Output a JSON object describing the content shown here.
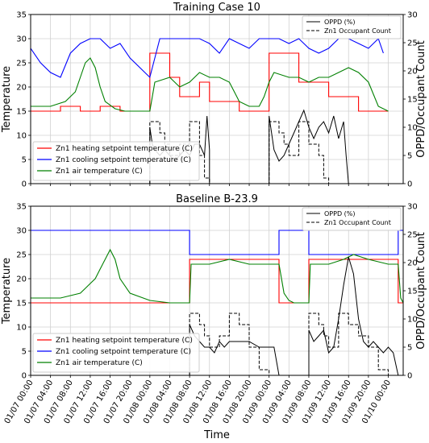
{
  "chart_data": [
    {
      "type": "line",
      "title": "Training Case 10",
      "ylabel": "Temperature",
      "y2label": "OPPD/Occupant Count",
      "ylim": [
        0,
        35
      ],
      "y2lim": [
        0,
        30
      ],
      "yticks": [
        "0",
        "5",
        "10",
        "15",
        "20",
        "25",
        "30",
        "35"
      ],
      "y2ticks": [
        "0",
        "5",
        "10",
        "15",
        "20",
        "25",
        "30"
      ],
      "grid": true,
      "legend_left": [
        "Zn1 heating setpoint temperature (C)",
        "Zn1 cooling setpoint temperature (C)",
        "Zn1 air temperature (C)"
      ],
      "legend_right": [
        "OPPD (%)",
        "Zn1 Occupant Count"
      ],
      "series": [
        {
          "name": "Zn1 heating setpoint temperature (C)",
          "color": "#ff0000",
          "x": [
            0,
            6,
            6,
            10,
            10,
            14,
            14,
            18,
            18,
            24,
            24,
            28,
            28,
            30,
            30,
            34,
            34,
            36,
            36,
            42,
            42,
            48,
            48,
            54,
            54,
            60,
            60,
            66,
            66,
            72
          ],
          "y": [
            15,
            15,
            16,
            16,
            15,
            15,
            16,
            16,
            15,
            15,
            27,
            27,
            22,
            22,
            18,
            18,
            21,
            21,
            17,
            17,
            15,
            15,
            27,
            27,
            21,
            21,
            18,
            18,
            15,
            15
          ]
        },
        {
          "name": "Zn1 cooling setpoint temperature (C)",
          "color": "#0000ff",
          "x": [
            0,
            2,
            4,
            6,
            8,
            10,
            12,
            14,
            16,
            18,
            20,
            22,
            24,
            26,
            28,
            30,
            32,
            34,
            36,
            38,
            40,
            42,
            44,
            46,
            48,
            50,
            52,
            54,
            56,
            58,
            60,
            62,
            64,
            66,
            68,
            70,
            71
          ],
          "y": [
            28,
            25,
            23,
            22,
            27,
            29,
            30,
            30,
            28,
            29,
            26,
            24,
            22,
            30,
            30,
            30,
            30,
            30,
            29,
            27,
            30,
            29,
            28,
            30,
            30,
            30,
            29,
            30,
            28,
            27,
            28,
            30,
            30,
            29,
            28,
            30,
            27
          ]
        },
        {
          "name": "Zn1 air temperature (C)",
          "color": "#008000",
          "x": [
            0,
            4,
            7,
            9,
            10,
            11,
            12,
            13,
            14,
            15,
            17,
            19,
            21,
            24,
            25,
            28,
            30,
            32,
            34,
            36,
            38,
            40,
            41,
            42,
            44,
            46,
            47,
            48,
            49,
            52,
            54,
            56,
            58,
            60,
            62,
            64,
            66,
            68,
            70,
            72
          ],
          "y": [
            16,
            16,
            17,
            19,
            22,
            25,
            26,
            24,
            20,
            17,
            15.5,
            15,
            15,
            15,
            21,
            22,
            20,
            21,
            23,
            22,
            22,
            21,
            19,
            17,
            16,
            16,
            18,
            21,
            23,
            22,
            22,
            21,
            22,
            22,
            23,
            24,
            23,
            21,
            16,
            15
          ]
        }
      ],
      "series_right": [
        {
          "name": "OPPD (%)",
          "color": "#000000",
          "x": [
            24,
            24,
            24.5,
            25,
            26,
            27,
            28,
            29,
            30,
            31,
            32,
            33,
            34,
            35,
            35.5,
            36,
            36,
            48,
            48,
            49,
            50,
            51,
            52,
            53,
            54,
            55,
            56,
            57,
            58,
            59,
            60,
            61,
            62,
            63,
            63.5,
            64
          ],
          "y": [
            0,
            10,
            7,
            6,
            5,
            6,
            5,
            4,
            5,
            6,
            5,
            7,
            7,
            5,
            12,
            6,
            0,
            0,
            12,
            6,
            4,
            5,
            7,
            9,
            11,
            13,
            10,
            8,
            10,
            11,
            9,
            12,
            8,
            11,
            5,
            0
          ]
        },
        {
          "name": "Zn1 Occupant Count",
          "color": "#000000",
          "x": [
            24,
            24,
            26,
            26,
            27,
            27,
            28,
            28,
            30,
            30,
            32,
            32,
            34,
            34,
            35,
            35,
            36,
            36,
            48,
            48,
            50,
            50,
            51,
            51,
            52,
            52,
            54,
            54,
            56,
            56,
            58,
            58,
            59,
            59,
            60,
            60
          ],
          "y": [
            0,
            11,
            11,
            9,
            9,
            7,
            7,
            5,
            5,
            7,
            7,
            11,
            11,
            5,
            5,
            1,
            1,
            0,
            0,
            11,
            11,
            9,
            9,
            7,
            7,
            5,
            5,
            11,
            11,
            7,
            7,
            5,
            5,
            1,
            1,
            0
          ]
        }
      ]
    },
    {
      "type": "line",
      "title": "Baseline B-23.9",
      "ylabel": "Temperature",
      "y2label": "OPPD/Occupant Count",
      "xlabel": "Time",
      "ylim": [
        0,
        35
      ],
      "y2lim": [
        0,
        30
      ],
      "yticks": [
        "0",
        "5",
        "10",
        "15",
        "20",
        "25",
        "30",
        "35"
      ],
      "y2ticks": [
        "0",
        "5",
        "10",
        "15",
        "20",
        "25",
        "30"
      ],
      "xticks": [
        "01/07 00:00",
        "01/07 04:00",
        "01/07 08:00",
        "01/07 12:00",
        "01/07 16:00",
        "01/07 20:00",
        "01/08 00:00",
        "01/08 04:00",
        "01/08 08:00",
        "01/08 12:00",
        "01/08 16:00",
        "01/08 20:00",
        "01/09 00:00",
        "01/09 04:00",
        "01/09 08:00",
        "01/09 12:00",
        "01/09 16:00",
        "01/09 20:00",
        "01/10 00:00"
      ],
      "grid": true,
      "legend_left": [
        "Zn1 heating setpoint temperature (C)",
        "Zn1 cooling setpoint temperature (C)",
        "Zn1 air temperature (C)"
      ],
      "legend_right": [
        "OPPD (%)",
        "Zn1 Occupant Count"
      ],
      "series": [
        {
          "name": "Zn1 heating setpoint temperature (C)",
          "color": "#ff0000",
          "x": [
            0,
            32,
            32,
            50,
            50,
            56,
            56,
            74,
            74,
            75
          ],
          "y": [
            15,
            15,
            24,
            24,
            15,
            15,
            24,
            24,
            15,
            15
          ]
        },
        {
          "name": "Zn1 cooling setpoint temperature (C)",
          "color": "#0000ff",
          "x": [
            0,
            32,
            32,
            50,
            50,
            56,
            56,
            74,
            74,
            75
          ],
          "y": [
            30,
            30,
            25,
            25,
            30,
            30,
            25,
            25,
            30,
            30
          ]
        },
        {
          "name": "Zn1 air temperature (C)",
          "color": "#008000",
          "x": [
            0,
            2,
            4,
            6,
            8,
            10,
            11,
            12,
            13,
            14,
            15,
            16,
            17,
            18,
            20,
            24,
            28,
            31,
            32,
            32.3,
            34,
            36,
            40,
            44,
            48,
            50,
            50.5,
            51,
            52,
            53,
            56,
            56.3,
            60,
            63,
            65,
            68,
            72,
            74,
            74.5,
            75
          ],
          "y": [
            16,
            16,
            16,
            16,
            16.5,
            17,
            18,
            19,
            20,
            22,
            24,
            26,
            24,
            20,
            17,
            15.5,
            15,
            15,
            15,
            23,
            23,
            23,
            24,
            23,
            23,
            23,
            20,
            17,
            15.5,
            15,
            15,
            23,
            23,
            24,
            25,
            24,
            23,
            23,
            16,
            15
          ]
        }
      ],
      "series_right": [
        {
          "name": "OPPD (%)",
          "color": "#000000",
          "x": [
            32,
            32,
            33,
            34,
            35,
            36,
            37,
            38,
            39,
            40,
            42,
            44,
            46,
            48,
            49,
            50,
            56,
            56,
            57,
            58,
            59,
            60,
            61,
            62,
            63,
            64,
            65,
            66,
            67,
            68,
            69,
            70,
            71,
            72,
            73,
            74
          ],
          "y": [
            0,
            9,
            7,
            6,
            5,
            5,
            4,
            6,
            5,
            6,
            6,
            6,
            5,
            5,
            5,
            0,
            0,
            8,
            6,
            7,
            8,
            4,
            5,
            10,
            16,
            21,
            18,
            10,
            6,
            5,
            6,
            5,
            4,
            5,
            4,
            0
          ]
        },
        {
          "name": "Zn1 Occupant Count",
          "color": "#000000",
          "x": [
            32,
            32,
            34,
            34,
            35,
            35,
            36,
            36,
            38,
            38,
            40,
            40,
            42,
            42,
            44,
            44,
            46,
            46,
            48,
            48,
            50,
            50,
            56,
            56,
            58,
            58,
            59,
            59,
            60,
            60,
            62,
            62,
            64,
            64,
            66,
            66,
            68,
            68,
            70,
            70,
            72,
            72,
            74
          ],
          "y": [
            0,
            11,
            11,
            9,
            9,
            7,
            7,
            5,
            5,
            7,
            7,
            11,
            11,
            9,
            9,
            5,
            5,
            1,
            1,
            0,
            0,
            0,
            0,
            11,
            11,
            9,
            9,
            7,
            7,
            5,
            5,
            11,
            11,
            9,
            9,
            7,
            7,
            5,
            5,
            1,
            1,
            0,
            0
          ]
        }
      ]
    }
  ]
}
